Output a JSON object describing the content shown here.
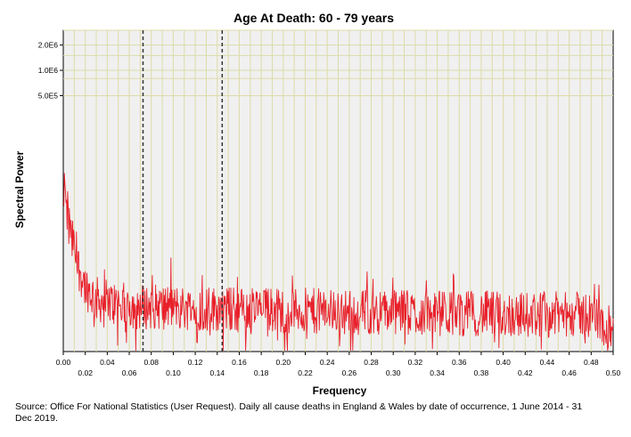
{
  "chart_data": {
    "type": "line",
    "title": "Age At Death: 60 - 79 years",
    "xlabel": "Frequency",
    "ylabel": "Spectral Power",
    "xlim": [
      0.0,
      0.5
    ],
    "y_scale": "log",
    "y_tick_labels": [
      "2.0E6",
      "1.0E6",
      "5.0E5"
    ],
    "y_tick_values": [
      2000000,
      1000000,
      500000
    ],
    "x_tick_labels": [
      "0.00",
      "0.02",
      "0.04",
      "0.06",
      "0.08",
      "0.10",
      "0.12",
      "0.14",
      "0.16",
      "0.18",
      "0.20",
      "0.22",
      "0.24",
      "0.26",
      "0.28",
      "0.30",
      "0.32",
      "0.34",
      "0.36",
      "0.38",
      "0.40",
      "0.42",
      "0.44",
      "0.46",
      "0.48",
      "0.50"
    ],
    "reference_lines_x": [
      0.0725,
      0.1445
    ],
    "grid": true,
    "series_color": "#e8202a",
    "series": [
      {
        "x": [
          0.0005,
          0.001,
          0.002,
          0.003,
          0.004,
          0.005,
          0.006,
          0.007,
          0.008,
          0.009,
          0.01,
          0.012,
          0.014,
          0.016,
          0.018,
          0.02,
          0.023,
          0.026,
          0.03,
          0.035,
          0.04,
          0.05,
          0.06,
          0.07,
          0.08,
          0.1,
          0.12,
          0.14,
          0.16,
          0.18,
          0.2,
          0.22,
          0.24,
          0.26,
          0.28,
          0.3,
          0.32,
          0.34,
          0.36,
          0.38,
          0.4,
          0.42,
          0.44,
          0.46,
          0.48,
          0.5
        ],
        "y": [
          24000,
          60000,
          35000,
          18000,
          28000,
          14000,
          20000,
          12000,
          9000,
          12000,
          8000,
          6500,
          5200,
          4500,
          3800,
          3200,
          2800,
          2500,
          2200,
          2100,
          2000,
          1900,
          1850,
          1800,
          1800,
          1750,
          1700,
          1700,
          1650,
          1650,
          1600,
          1600,
          1600,
          1550,
          1550,
          1550,
          1500,
          1500,
          1500,
          1500,
          1450,
          1450,
          1450,
          1450,
          1450,
          900
        ]
      }
    ],
    "source_text": "Source: Office For National Statistics (User Request). Daily all cause deaths in England & Wales by date of occurrence, 1 June 2014 - 31 Dec 2019."
  }
}
